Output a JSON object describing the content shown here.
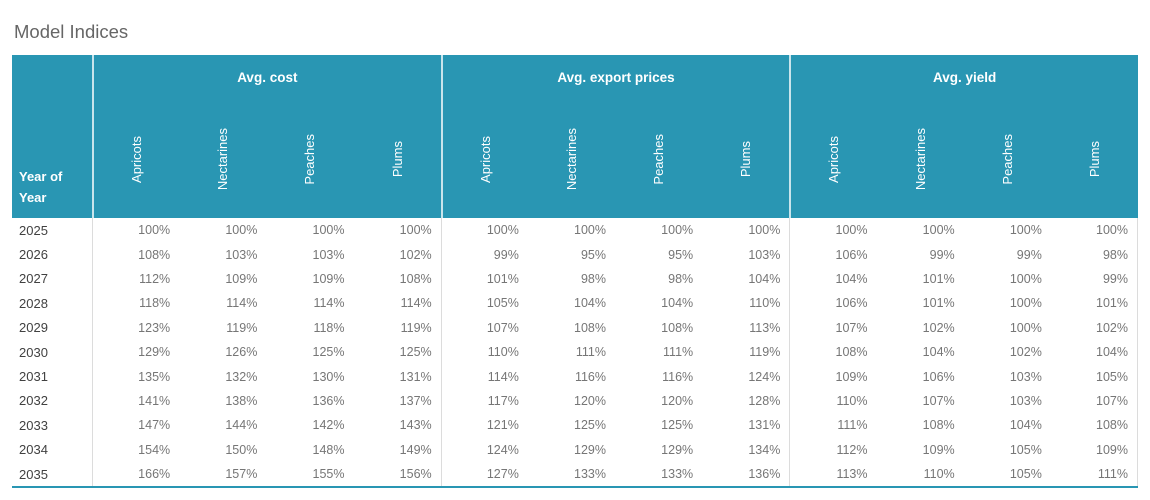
{
  "title": "Model Indices",
  "colors": {
    "header_background": "#2996B3",
    "header_text": "#ffffff",
    "title_text": "#666666",
    "year_text": "#414141",
    "value_text": "#767676",
    "body_gridline": "#dcdcdc",
    "bottom_border": "#2996B3"
  },
  "table": {
    "row_header": {
      "line1": "Year of",
      "line2": "Year"
    },
    "groups": [
      {
        "label": "Avg. cost",
        "columns": [
          "Apricots",
          "Nectarines",
          "Peaches",
          "Plums"
        ]
      },
      {
        "label": "Avg. export prices",
        "columns": [
          "Apricots",
          "Nectarines",
          "Peaches",
          "Plums"
        ]
      },
      {
        "label": "Avg. yield",
        "columns": [
          "Apricots",
          "Nectarines",
          "Peaches",
          "Plums"
        ]
      }
    ],
    "rows": [
      {
        "year": "2025",
        "values": [
          "100%",
          "100%",
          "100%",
          "100%",
          "100%",
          "100%",
          "100%",
          "100%",
          "100%",
          "100%",
          "100%",
          "100%"
        ]
      },
      {
        "year": "2026",
        "values": [
          "108%",
          "103%",
          "103%",
          "102%",
          "99%",
          "95%",
          "95%",
          "103%",
          "106%",
          "99%",
          "99%",
          "98%"
        ]
      },
      {
        "year": "2027",
        "values": [
          "112%",
          "109%",
          "109%",
          "108%",
          "101%",
          "98%",
          "98%",
          "104%",
          "104%",
          "101%",
          "100%",
          "99%"
        ]
      },
      {
        "year": "2028",
        "values": [
          "118%",
          "114%",
          "114%",
          "114%",
          "105%",
          "104%",
          "104%",
          "110%",
          "106%",
          "101%",
          "100%",
          "101%"
        ]
      },
      {
        "year": "2029",
        "values": [
          "123%",
          "119%",
          "118%",
          "119%",
          "107%",
          "108%",
          "108%",
          "113%",
          "107%",
          "102%",
          "100%",
          "102%"
        ]
      },
      {
        "year": "2030",
        "values": [
          "129%",
          "126%",
          "125%",
          "125%",
          "110%",
          "111%",
          "111%",
          "119%",
          "108%",
          "104%",
          "102%",
          "104%"
        ]
      },
      {
        "year": "2031",
        "values": [
          "135%",
          "132%",
          "130%",
          "131%",
          "114%",
          "116%",
          "116%",
          "124%",
          "109%",
          "106%",
          "103%",
          "105%"
        ]
      },
      {
        "year": "2032",
        "values": [
          "141%",
          "138%",
          "136%",
          "137%",
          "117%",
          "120%",
          "120%",
          "128%",
          "110%",
          "107%",
          "103%",
          "107%"
        ]
      },
      {
        "year": "2033",
        "values": [
          "147%",
          "144%",
          "142%",
          "143%",
          "121%",
          "125%",
          "125%",
          "131%",
          "111%",
          "108%",
          "104%",
          "108%"
        ]
      },
      {
        "year": "2034",
        "values": [
          "154%",
          "150%",
          "148%",
          "149%",
          "124%",
          "129%",
          "129%",
          "134%",
          "112%",
          "109%",
          "105%",
          "109%"
        ]
      },
      {
        "year": "2035",
        "values": [
          "166%",
          "157%",
          "155%",
          "156%",
          "127%",
          "133%",
          "133%",
          "136%",
          "113%",
          "110%",
          "105%",
          "111%"
        ]
      }
    ]
  },
  "chart_data": {
    "type": "table",
    "title": "Model Indices",
    "row_dimension": "Year of Year",
    "unit": "%",
    "years": [
      2025,
      2026,
      2027,
      2028,
      2029,
      2030,
      2031,
      2032,
      2033,
      2034,
      2035
    ],
    "measures": [
      {
        "name": "Avg. cost",
        "series": [
          {
            "name": "Apricots",
            "values": [
              100,
              108,
              112,
              118,
              123,
              129,
              135,
              141,
              147,
              154,
              166
            ]
          },
          {
            "name": "Nectarines",
            "values": [
              100,
              103,
              109,
              114,
              119,
              126,
              132,
              138,
              144,
              150,
              157
            ]
          },
          {
            "name": "Peaches",
            "values": [
              100,
              103,
              109,
              114,
              118,
              125,
              130,
              136,
              142,
              148,
              155
            ]
          },
          {
            "name": "Plums",
            "values": [
              100,
              102,
              108,
              114,
              119,
              125,
              131,
              137,
              143,
              149,
              156
            ]
          }
        ]
      },
      {
        "name": "Avg. export prices",
        "series": [
          {
            "name": "Apricots",
            "values": [
              100,
              99,
              101,
              105,
              107,
              110,
              114,
              117,
              121,
              124,
              127
            ]
          },
          {
            "name": "Nectarines",
            "values": [
              100,
              95,
              98,
              104,
              108,
              111,
              116,
              120,
              125,
              129,
              133
            ]
          },
          {
            "name": "Peaches",
            "values": [
              100,
              95,
              98,
              104,
              108,
              111,
              116,
              120,
              125,
              129,
              133
            ]
          },
          {
            "name": "Plums",
            "values": [
              100,
              103,
              104,
              110,
              113,
              119,
              124,
              128,
              131,
              134,
              136
            ]
          }
        ]
      },
      {
        "name": "Avg. yield",
        "series": [
          {
            "name": "Apricots",
            "values": [
              100,
              106,
              104,
              106,
              107,
              108,
              109,
              110,
              111,
              112,
              113
            ]
          },
          {
            "name": "Nectarines",
            "values": [
              100,
              99,
              101,
              101,
              102,
              104,
              106,
              107,
              108,
              109,
              110
            ]
          },
          {
            "name": "Peaches",
            "values": [
              100,
              99,
              100,
              100,
              100,
              102,
              103,
              103,
              104,
              105,
              105
            ]
          },
          {
            "name": "Plums",
            "values": [
              100,
              98,
              99,
              101,
              102,
              104,
              105,
              107,
              108,
              109,
              111
            ]
          }
        ]
      }
    ]
  }
}
